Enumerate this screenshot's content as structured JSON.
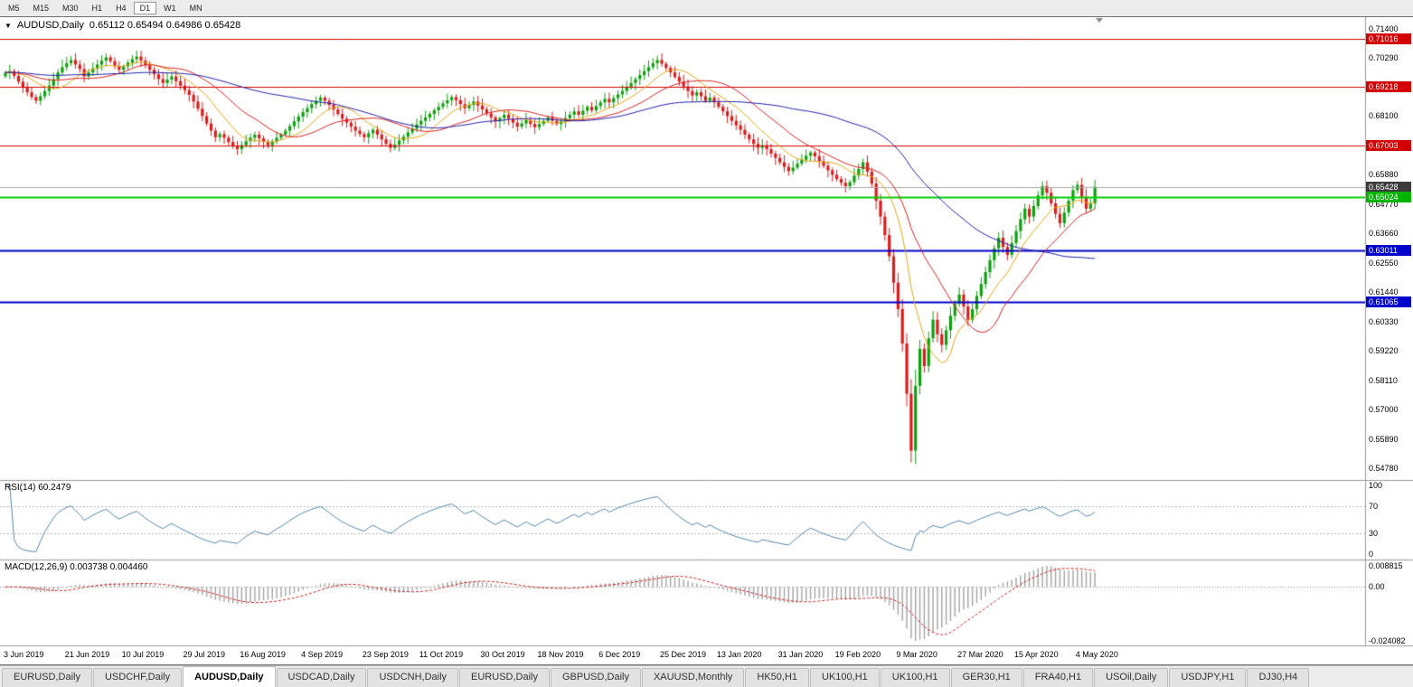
{
  "toolbar": {
    "timeframes": [
      "M5",
      "M15",
      "M30",
      "H1",
      "H4",
      "D1",
      "W1",
      "MN"
    ],
    "active_timeframe": "D1"
  },
  "icons": {
    "title_marker": "▼"
  },
  "chart": {
    "title_symbol": "AUDUSD,Daily",
    "title_ohlc": "0.65112 0.65494 0.64986 0.65428",
    "ohlc": {
      "open": "0.65112",
      "high": "0.65494",
      "low": "0.64986",
      "close": "0.65428"
    },
    "price_axis": {
      "ticks": [
        "0.71400",
        "0.70290",
        "0.68100",
        "0.65880",
        "0.64770",
        "0.63660",
        "0.62550",
        "0.61440",
        "0.60330",
        "0.59220",
        "0.58110",
        "0.57000",
        "0.55890",
        "0.54780"
      ]
    },
    "levels": [
      {
        "label": "0.71016",
        "value": 0.71016,
        "kind": "resistance"
      },
      {
        "label": "0.69218",
        "value": 0.69218,
        "kind": "resistance"
      },
      {
        "label": "0.67003",
        "value": 0.67003,
        "kind": "resistance"
      },
      {
        "label": "0.65428",
        "value": 0.65428,
        "kind": "bid"
      },
      {
        "label": "0.65024",
        "value": 0.65024,
        "kind": "support"
      },
      {
        "label": "0.63011",
        "value": 0.63011,
        "kind": "blue"
      },
      {
        "label": "0.61065",
        "value": 0.61065,
        "kind": "blue"
      }
    ],
    "date_axis": [
      "3 Jun 2019",
      "21 Jun 2019",
      "10 Jul 2019",
      "29 Jul 2019",
      "16 Aug 2019",
      "4 Sep 2019",
      "23 Sep 2019",
      "11 Oct 2019",
      "30 Oct 2019",
      "18 Nov 2019",
      "6 Dec 2019",
      "25 Dec 2019",
      "13 Jan 2020",
      "31 Jan 2020",
      "19 Feb 2020",
      "9 Mar 2020",
      "27 Mar 2020",
      "15 Apr 2020",
      "4 May 2020"
    ]
  },
  "indicators": {
    "rsi": {
      "label": "RSI(14) 60.2479",
      "period": 14,
      "value": 60.2479,
      "ticks": [
        "100",
        "70",
        "30",
        "0"
      ],
      "levels": [
        70,
        30
      ]
    },
    "macd": {
      "label": "MACD(12,26,9) 0.003738 0.004460",
      "params": [
        12,
        26,
        9
      ],
      "value": 0.003738,
      "signal": 0.00446,
      "ticks": {
        "max": "0.008815",
        "zero": "0.00",
        "min": "-0.024082"
      }
    }
  },
  "tabs": {
    "items": [
      "EURUSD,Daily",
      "USDCHF,Daily",
      "AUDUSD,Daily",
      "USDCAD,Daily",
      "USDCNH,Daily",
      "EURUSD,Daily",
      "GBPUSD,Daily",
      "XAUUSD,Monthly",
      "HK50,H1",
      "UK100,H1",
      "UK100,H1",
      "GER30,H1",
      "FRA40,H1",
      "USOil,Daily",
      "USDJPY,H1",
      "DJ30,H4"
    ],
    "active_index": 2
  },
  "colors": {
    "bull": "#0ea00e",
    "bear": "#dd1c1c",
    "ma_fast_gold": "#e6a817",
    "ma_medium_red": "#dd2222",
    "ma_slow_blue": "#2222aa",
    "resistance_red": "#d40000",
    "support_green_line": "#00d000",
    "support_green_label": "#00b400",
    "blue_line": "#0000cc",
    "bid_line": "#a8a8a8",
    "bid_label_bg": "#3c3c3c",
    "rsi_line": "#5588aa",
    "macd_hist": "#a4a4a4",
    "macd_signal": "#cc2222",
    "separator": "#9a9a9a"
  },
  "chart_data": {
    "type": "candlestick",
    "symbol": "AUDUSD",
    "timeframe": "Daily",
    "price_range": [
      0.5434,
      0.7184
    ],
    "ma_periods": {
      "fast": 10,
      "medium": 21,
      "slow": 55
    },
    "closes": [
      0.6975,
      0.698,
      0.6962,
      0.694,
      0.692,
      0.69,
      0.6882,
      0.6868,
      0.6885,
      0.6905,
      0.6925,
      0.695,
      0.6975,
      0.6995,
      0.701,
      0.7022,
      0.7005,
      0.6988,
      0.696,
      0.6975,
      0.699,
      0.7005,
      0.702,
      0.7032,
      0.7018,
      0.7,
      0.6985,
      0.6998,
      0.7012,
      0.7025,
      0.7035,
      0.702,
      0.7002,
      0.6985,
      0.6968,
      0.695,
      0.6935,
      0.6948,
      0.696,
      0.6942,
      0.6925,
      0.6908,
      0.689,
      0.6865,
      0.6838,
      0.681,
      0.6782,
      0.6755,
      0.673,
      0.6742,
      0.6728,
      0.6712,
      0.6698,
      0.6685,
      0.67,
      0.6715,
      0.6728,
      0.674,
      0.6726,
      0.6712,
      0.67,
      0.6714,
      0.6728,
      0.674,
      0.6755,
      0.6772,
      0.679,
      0.6808,
      0.6825,
      0.684,
      0.6855,
      0.6868,
      0.688,
      0.6868,
      0.6852,
      0.6835,
      0.6818,
      0.68,
      0.6785,
      0.677,
      0.6755,
      0.6742,
      0.673,
      0.6745,
      0.6758,
      0.674,
      0.6722,
      0.6705,
      0.669,
      0.6702,
      0.6718,
      0.6732,
      0.6748,
      0.6762,
      0.6778,
      0.6792,
      0.6805,
      0.6818,
      0.6832,
      0.6845,
      0.6858,
      0.687,
      0.6882,
      0.687,
      0.6855,
      0.684,
      0.6852,
      0.6865,
      0.685,
      0.6835,
      0.682,
      0.6805,
      0.679,
      0.6802,
      0.6815,
      0.68,
      0.6785,
      0.677,
      0.6782,
      0.6795,
      0.678,
      0.6768,
      0.678,
      0.6792,
      0.6805,
      0.6792,
      0.678,
      0.679,
      0.6802,
      0.6815,
      0.6828,
      0.6815,
      0.683,
      0.6845,
      0.6832,
      0.6848,
      0.6862,
      0.6875,
      0.6862,
      0.6878,
      0.6892,
      0.6905,
      0.692,
      0.6935,
      0.695,
      0.6965,
      0.698,
      0.6995,
      0.701,
      0.7022,
      0.7008,
      0.6992,
      0.6975,
      0.6958,
      0.694,
      0.6922,
      0.6905,
      0.6888,
      0.69,
      0.6885,
      0.6868,
      0.688,
      0.6862,
      0.6845,
      0.6828,
      0.681,
      0.6792,
      0.6775,
      0.6758,
      0.674,
      0.6722,
      0.6705,
      0.669,
      0.67,
      0.6685,
      0.6668,
      0.6652,
      0.6635,
      0.6618,
      0.6602,
      0.6615,
      0.663,
      0.6645,
      0.666,
      0.6672,
      0.6658,
      0.664,
      0.6622,
      0.6605,
      0.6588,
      0.6572,
      0.6558,
      0.6545,
      0.656,
      0.6585,
      0.661,
      0.6635,
      0.66,
      0.6555,
      0.649,
      0.643,
      0.636,
      0.628,
      0.618,
      0.608,
      0.595,
      0.576,
      0.5545,
      0.579,
      0.593,
      0.5865,
      0.597,
      0.604,
      0.5985,
      0.5945,
      0.6,
      0.6055,
      0.61,
      0.6135,
      0.609,
      0.604,
      0.608,
      0.613,
      0.6175,
      0.622,
      0.6265,
      0.631,
      0.635,
      0.6315,
      0.6285,
      0.633,
      0.6375,
      0.642,
      0.646,
      0.643,
      0.647,
      0.651,
      0.6545,
      0.652,
      0.648,
      0.644,
      0.6405,
      0.6445,
      0.649,
      0.653,
      0.655,
      0.6505,
      0.646,
      0.648,
      0.65428
    ]
  }
}
